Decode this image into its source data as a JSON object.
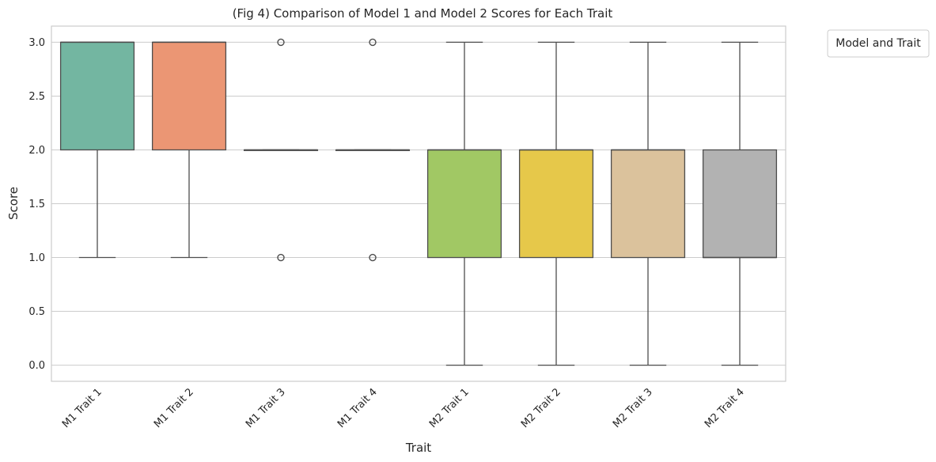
{
  "chart_data": {
    "type": "box",
    "title": "(Fig 4) Comparison of Model 1 and Model 2 Scores for Each Trait",
    "xlabel": "Trait",
    "ylabel": "Score",
    "ylim": [
      -0.15,
      3.15
    ],
    "yticks": [
      0.0,
      0.5,
      1.0,
      1.5,
      2.0,
      2.5,
      3.0
    ],
    "ytick_labels": [
      "0.0",
      "0.5",
      "1.0",
      "1.5",
      "2.0",
      "2.5",
      "3.0"
    ],
    "grid": "horizontal",
    "legend": {
      "title": "Model and Trait",
      "placement": "outside-top-right",
      "entries": []
    },
    "categories": [
      "M1 Trait 1",
      "M1 Trait 2",
      "M1 Trait 3",
      "M1 Trait 4",
      "M2 Trait 1",
      "M2 Trait 2",
      "M2 Trait 3",
      "M2 Trait 4"
    ],
    "boxes": [
      {
        "category": "M1 Trait 1",
        "whisker_low": 1,
        "q1": 2,
        "median": 3,
        "q3": 3,
        "whisker_high": 3,
        "outliers": [],
        "color": "#73b6a1"
      },
      {
        "category": "M1 Trait 2",
        "whisker_low": 1,
        "q1": 2,
        "median": 3,
        "q3": 3,
        "whisker_high": 3,
        "outliers": [],
        "color": "#eb9674"
      },
      {
        "category": "M1 Trait 3",
        "whisker_low": 2,
        "q1": 2,
        "median": 2,
        "q3": 2,
        "whisker_high": 2,
        "outliers": [
          1,
          3
        ],
        "color": "#8e9fc4"
      },
      {
        "category": "M1 Trait 4",
        "whisker_low": 2,
        "q1": 2,
        "median": 2,
        "q3": 2,
        "whisker_high": 2,
        "outliers": [
          1,
          3
        ],
        "color": "#d08dbe"
      },
      {
        "category": "M2 Trait 1",
        "whisker_low": 0,
        "q1": 1,
        "median": 2,
        "q3": 2,
        "whisker_high": 3,
        "outliers": [],
        "color": "#a1c864"
      },
      {
        "category": "M2 Trait 2",
        "whisker_low": 0,
        "q1": 1,
        "median": 2,
        "q3": 2,
        "whisker_high": 3,
        "outliers": [],
        "color": "#e6c84a"
      },
      {
        "category": "M2 Trait 3",
        "whisker_low": 0,
        "q1": 1,
        "median": 2,
        "q3": 2,
        "whisker_high": 3,
        "outliers": [],
        "color": "#dbc29c"
      },
      {
        "category": "M2 Trait 4",
        "whisker_low": 0,
        "q1": 1,
        "median": 1,
        "q3": 2,
        "whisker_high": 3,
        "outliers": [],
        "color": "#b2b2b2"
      }
    ]
  }
}
